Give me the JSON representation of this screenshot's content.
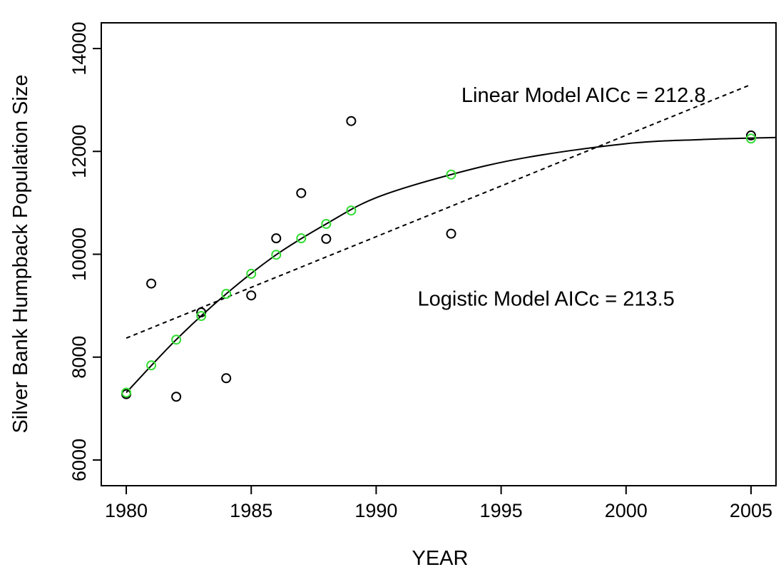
{
  "chart_data": {
    "type": "scatter",
    "title": "",
    "xlabel": "YEAR",
    "ylabel": "Silver Bank Humpback Population Size",
    "xlim": [
      1979,
      2006
    ],
    "ylim": [
      5500,
      14500
    ],
    "x_ticks": [
      1980,
      1985,
      1990,
      1995,
      2000,
      2005
    ],
    "y_ticks": [
      6000,
      8000,
      10000,
      12000,
      14000
    ],
    "grid": false,
    "legend": "none",
    "colors": {
      "observed": "#000000",
      "fitted": "#33dd33",
      "curves": "#000000"
    },
    "series": [
      {
        "marker": "open-circle",
        "color": "#000000",
        "x": [
          1980,
          1981,
          1982,
          1983,
          1984,
          1985,
          1986,
          1987,
          1988,
          1989,
          1993,
          2005
        ],
        "y": [
          7280,
          9430,
          7230,
          8870,
          7590,
          9200,
          10310,
          11190,
          10300,
          12590,
          10400,
          12310
        ]
      },
      {
        "marker": "open-circle",
        "color": "#33dd33",
        "x": [
          1980,
          1981,
          1982,
          1983,
          1984,
          1985,
          1986,
          1987,
          1988,
          1989,
          1993,
          2005
        ],
        "y": [
          7310,
          7840,
          8340,
          8800,
          9230,
          9620,
          9990,
          10310,
          10590,
          10850,
          11550,
          12250
        ]
      },
      {
        "line": "solid",
        "color": "#000000",
        "x": [
          1980,
          1982,
          1984,
          1986,
          1988,
          1990,
          1993,
          1996,
          2000,
          2003,
          2006
        ],
        "y": [
          7310,
          8340,
          9230,
          9990,
          10590,
          11100,
          11550,
          11880,
          12150,
          12230,
          12270
        ]
      },
      {
        "line": "dashed",
        "color": "#000000",
        "x": [
          1980,
          2005
        ],
        "y": [
          8370,
          13300
        ]
      }
    ],
    "annotations": [
      {
        "text": "Linear Model AICc = 212.8",
        "x": 1998.3,
        "y": 12960
      },
      {
        "text": "Logistic Model AICc = 213.5",
        "x": 1996.8,
        "y": 9000
      }
    ]
  }
}
